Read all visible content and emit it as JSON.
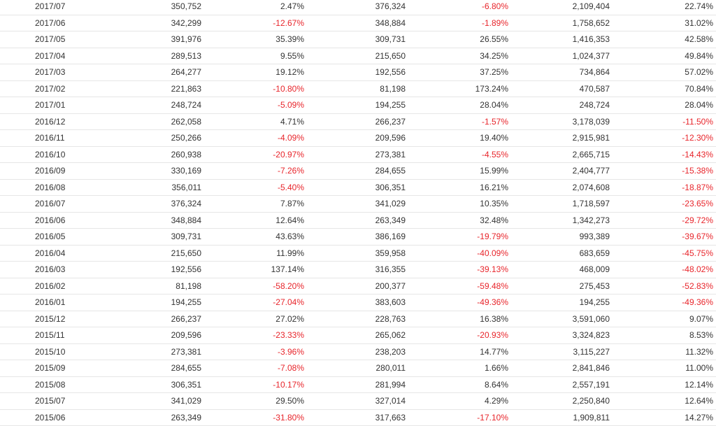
{
  "colors": {
    "negative": "#e8252b",
    "text": "#333333",
    "divider": "#e6e6e6"
  },
  "rows": [
    [
      "2017/07",
      "350,752",
      "2.47%",
      "376,324",
      "-6.80%",
      "2,109,404",
      "22.74%"
    ],
    [
      "2017/06",
      "342,299",
      "-12.67%",
      "348,884",
      "-1.89%",
      "1,758,652",
      "31.02%"
    ],
    [
      "2017/05",
      "391,976",
      "35.39%",
      "309,731",
      "26.55%",
      "1,416,353",
      "42.58%"
    ],
    [
      "2017/04",
      "289,513",
      "9.55%",
      "215,650",
      "34.25%",
      "1,024,377",
      "49.84%"
    ],
    [
      "2017/03",
      "264,277",
      "19.12%",
      "192,556",
      "37.25%",
      "734,864",
      "57.02%"
    ],
    [
      "2017/02",
      "221,863",
      "-10.80%",
      "81,198",
      "173.24%",
      "470,587",
      "70.84%"
    ],
    [
      "2017/01",
      "248,724",
      "-5.09%",
      "194,255",
      "28.04%",
      "248,724",
      "28.04%"
    ],
    [
      "2016/12",
      "262,058",
      "4.71%",
      "266,237",
      "-1.57%",
      "3,178,039",
      "-11.50%"
    ],
    [
      "2016/11",
      "250,266",
      "-4.09%",
      "209,596",
      "19.40%",
      "2,915,981",
      "-12.30%"
    ],
    [
      "2016/10",
      "260,938",
      "-20.97%",
      "273,381",
      "-4.55%",
      "2,665,715",
      "-14.43%"
    ],
    [
      "2016/09",
      "330,169",
      "-7.26%",
      "284,655",
      "15.99%",
      "2,404,777",
      "-15.38%"
    ],
    [
      "2016/08",
      "356,011",
      "-5.40%",
      "306,351",
      "16.21%",
      "2,074,608",
      "-18.87%"
    ],
    [
      "2016/07",
      "376,324",
      "7.87%",
      "341,029",
      "10.35%",
      "1,718,597",
      "-23.65%"
    ],
    [
      "2016/06",
      "348,884",
      "12.64%",
      "263,349",
      "32.48%",
      "1,342,273",
      "-29.72%"
    ],
    [
      "2016/05",
      "309,731",
      "43.63%",
      "386,169",
      "-19.79%",
      "993,389",
      "-39.67%"
    ],
    [
      "2016/04",
      "215,650",
      "11.99%",
      "359,958",
      "-40.09%",
      "683,659",
      "-45.75%"
    ],
    [
      "2016/03",
      "192,556",
      "137.14%",
      "316,355",
      "-39.13%",
      "468,009",
      "-48.02%"
    ],
    [
      "2016/02",
      "81,198",
      "-58.20%",
      "200,377",
      "-59.48%",
      "275,453",
      "-52.83%"
    ],
    [
      "2016/01",
      "194,255",
      "-27.04%",
      "383,603",
      "-49.36%",
      "194,255",
      "-49.36%"
    ],
    [
      "2015/12",
      "266,237",
      "27.02%",
      "228,763",
      "16.38%",
      "3,591,060",
      "9.07%"
    ],
    [
      "2015/11",
      "209,596",
      "-23.33%",
      "265,062",
      "-20.93%",
      "3,324,823",
      "8.53%"
    ],
    [
      "2015/10",
      "273,381",
      "-3.96%",
      "238,203",
      "14.77%",
      "3,115,227",
      "11.32%"
    ],
    [
      "2015/09",
      "284,655",
      "-7.08%",
      "280,011",
      "1.66%",
      "2,841,846",
      "11.00%"
    ],
    [
      "2015/08",
      "306,351",
      "-10.17%",
      "281,994",
      "8.64%",
      "2,557,191",
      "12.14%"
    ],
    [
      "2015/07",
      "341,029",
      "29.50%",
      "327,014",
      "4.29%",
      "2,250,840",
      "12.64%"
    ],
    [
      "2015/06",
      "263,349",
      "-31.80%",
      "317,663",
      "-17.10%",
      "1,909,811",
      "14.27%"
    ]
  ]
}
